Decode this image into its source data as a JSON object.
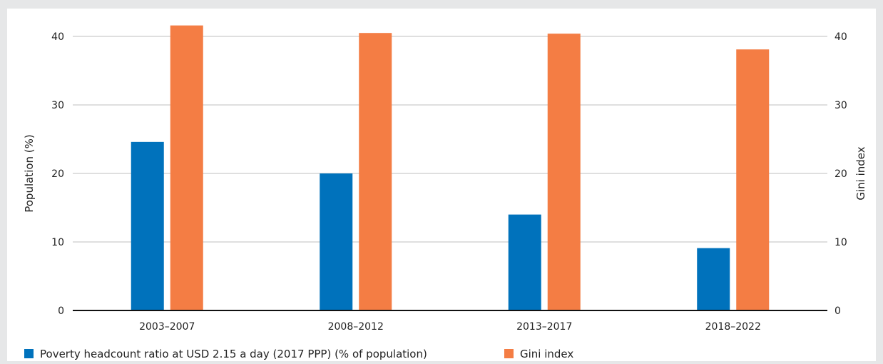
{
  "chart_data": {
    "type": "bar",
    "categories": [
      "2003–2007",
      "2008–2012",
      "2013–2017",
      "2018–2022"
    ],
    "series": [
      {
        "name": "Poverty headcount ratio at USD 2.15 a day (2017 PPP) (% of population)",
        "values": [
          24.6,
          20.0,
          14.0,
          9.1
        ],
        "axis": "left",
        "color": "#0072bc"
      },
      {
        "name": "Gini index",
        "values": [
          41.6,
          40.5,
          40.4,
          38.1
        ],
        "axis": "right",
        "color": "#f47d44"
      }
    ],
    "ylabel": "Population (%)",
    "y2label": "Gini index",
    "ylim": [
      0,
      42
    ],
    "y2lim": [
      0,
      42
    ],
    "yticks": [
      0,
      10,
      20,
      30,
      40
    ],
    "y2ticks": [
      0,
      10,
      20,
      30,
      40
    ],
    "grid": true,
    "legend_position": "bottom-left"
  }
}
